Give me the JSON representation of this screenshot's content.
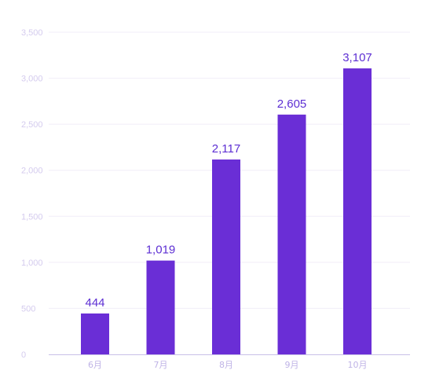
{
  "chart_data": {
    "type": "bar",
    "categories": [
      "6月",
      "7月",
      "8月",
      "9月",
      "10月"
    ],
    "values": [
      444,
      1019,
      2117,
      2605,
      3107
    ],
    "value_labels": [
      "444",
      "1,019",
      "2,117",
      "2,605",
      "3,107"
    ],
    "y_ticks": [
      0,
      500,
      1000,
      1500,
      2000,
      2500,
      3000,
      3500
    ],
    "y_tick_labels": [
      "0",
      "500",
      "1,000",
      "1,500",
      "2,000",
      "2,500",
      "3,000",
      "3,500"
    ],
    "ylim": [
      0,
      3500
    ],
    "grid": true,
    "colors": {
      "bar": "#6a2ed6",
      "data_label": "#5d2fd3",
      "grid": "#f1eef8",
      "axis": "#c9c0e8",
      "tick_label": "#d4cbee"
    }
  }
}
